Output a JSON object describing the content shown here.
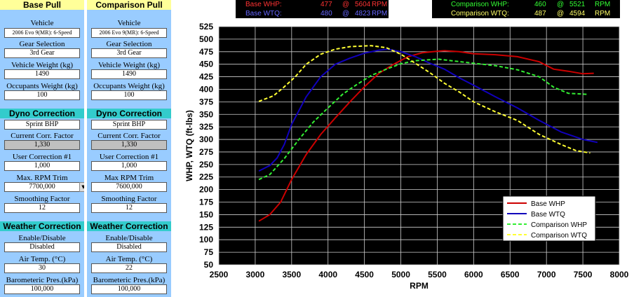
{
  "base_panel": {
    "title": "Base Pull",
    "vehicle_label": "Vehicle",
    "vehicle_value": "2006 Evo 9(MR): 6-Speed",
    "gear_label": "Gear Selection",
    "gear_value": "3rd Gear",
    "weight_label": "Vehicle Weight (kg)",
    "weight_value": "1490",
    "occupants_label": "Occupants Weight (kg)",
    "occupants_value": "100",
    "dyno_title": "Dyno Correction",
    "dyno_value": "Sprint BHP",
    "corr_label": "Current Corr. Factor",
    "corr_value": "1,330",
    "user_corr_label": "User Correction #1",
    "user_corr_value": "1,000",
    "rpm_trim_label": "Max. RPM Trim",
    "rpm_trim_value": "7700,000",
    "smoothing_label": "Smoothing Factor",
    "smoothing_value": "12",
    "weather_title": "Weather Correction",
    "enable_label": "Enable/Disable",
    "enable_value": "Disabled",
    "air_label": "Air Temp. (°C)",
    "air_value": "30",
    "baro_label": "Barometeric Pres.(kPa)",
    "baro_value": "100,000"
  },
  "comparison_panel": {
    "title": "Comparison Pull",
    "vehicle_label": "Vehicle",
    "vehicle_value": "2006 Evo 9(MR): 6-Speed",
    "gear_label": "Gear Selection",
    "gear_value": "3rd Gear",
    "weight_label": "Vehicle Weight (kg)",
    "weight_value": "1490",
    "occupants_label": "Occupants Weight (kg)",
    "occupants_value": "100",
    "dyno_title": "Dyno Correction",
    "dyno_value": "Sprint BHP",
    "corr_label": "Current Corr. Factor",
    "corr_value": "1,330",
    "user_corr_label": "User Correction #1",
    "user_corr_value": "1,000",
    "rpm_trim_label": "Max RPM Trim",
    "rpm_trim_value": "7600,000",
    "smoothing_label": "Smoothing Factor",
    "smoothing_value": "12",
    "weather_title": "Weather Correction",
    "enable_label": "Enable/Disable",
    "enable_value": "Disabled",
    "air_label": "Air Temp. (°C)",
    "air_value": "22",
    "baro_label": "Barometeric Pres.(kPa)",
    "baro_value": "100,000"
  },
  "summary": {
    "base_whp": {
      "label": "Base WHP:",
      "value": "477",
      "at": "@",
      "rpm": "5604",
      "unit": "RPM",
      "color": "#ff3333"
    },
    "base_wtq": {
      "label": "Base WTQ:",
      "value": "480",
      "at": "@",
      "rpm": "4823",
      "unit": "RPM",
      "color": "#6666ff"
    },
    "comp_whp": {
      "label": "Comparison WHP:",
      "value": "460",
      "at": "@",
      "rpm": "5521",
      "unit": "RPM",
      "color": "#33ff33"
    },
    "comp_wtq": {
      "label": "Comparison WTQ:",
      "value": "487",
      "at": "@",
      "rpm": "4594",
      "unit": "RPM",
      "color": "#ffff66"
    }
  },
  "chart_data": {
    "type": "line",
    "xlabel": "RPM",
    "ylabel": "WHP, WTQ (ft-lbs)",
    "xlim": [
      2500,
      8000
    ],
    "ylim": [
      50,
      525
    ],
    "xticks": [
      2500,
      3000,
      3500,
      4000,
      4500,
      5000,
      5500,
      6000,
      6500,
      7000,
      7500,
      8000
    ],
    "yticks": [
      50,
      75,
      100,
      125,
      150,
      175,
      200,
      225,
      250,
      275,
      300,
      325,
      350,
      375,
      400,
      425,
      450,
      475,
      500,
      525
    ],
    "grid": true,
    "background": "#000000",
    "legend_position": "bottom-right",
    "series": [
      {
        "name": "Base WHP",
        "color": "#cc0000",
        "dash": false,
        "x": [
          3050,
          3200,
          3350,
          3500,
          3700,
          3900,
          4100,
          4300,
          4500,
          4700,
          4900,
          5100,
          5300,
          5500,
          5604,
          5800,
          6000,
          6300,
          6600,
          6900,
          7100,
          7300,
          7500,
          7650
        ],
        "y": [
          137,
          150,
          175,
          220,
          270,
          310,
          343,
          375,
          405,
          432,
          450,
          465,
          473,
          476,
          477,
          475,
          471,
          469,
          465,
          455,
          440,
          436,
          431,
          432
        ]
      },
      {
        "name": "Base WTQ",
        "color": "#1100bb",
        "dash": false,
        "x": [
          3050,
          3200,
          3300,
          3400,
          3500,
          3700,
          3900,
          4100,
          4300,
          4500,
          4700,
          4823,
          5000,
          5200,
          5400,
          5600,
          5800,
          6000,
          6300,
          6600,
          6900,
          7200,
          7500,
          7700
        ],
        "y": [
          237,
          248,
          263,
          290,
          330,
          385,
          425,
          450,
          462,
          472,
          478,
          480,
          475,
          465,
          452,
          440,
          423,
          408,
          385,
          363,
          338,
          315,
          300,
          294
        ]
      },
      {
        "name": "Comparison WHP",
        "color": "#33ee33",
        "dash": true,
        "x": [
          3050,
          3200,
          3400,
          3600,
          3800,
          4000,
          4200,
          4400,
          4600,
          4800,
          5000,
          5200,
          5400,
          5521,
          5700,
          6000,
          6300,
          6600,
          6900,
          7100,
          7300,
          7550
        ],
        "y": [
          220,
          230,
          262,
          300,
          335,
          363,
          390,
          410,
          428,
          440,
          451,
          457,
          459,
          460,
          457,
          452,
          447,
          439,
          425,
          404,
          392,
          390
        ]
      },
      {
        "name": "Comparison WTQ",
        "color": "#ffff33",
        "dash": true,
        "x": [
          3050,
          3250,
          3400,
          3550,
          3700,
          3900,
          4100,
          4300,
          4594,
          4800,
          5000,
          5200,
          5400,
          5600,
          5800,
          6000,
          6300,
          6600,
          6900,
          7200,
          7400,
          7600
        ],
        "y": [
          376,
          387,
          405,
          425,
          450,
          470,
          480,
          485,
          487,
          483,
          470,
          452,
          433,
          412,
          395,
          375,
          355,
          338,
          310,
          290,
          278,
          273
        ]
      }
    ]
  }
}
